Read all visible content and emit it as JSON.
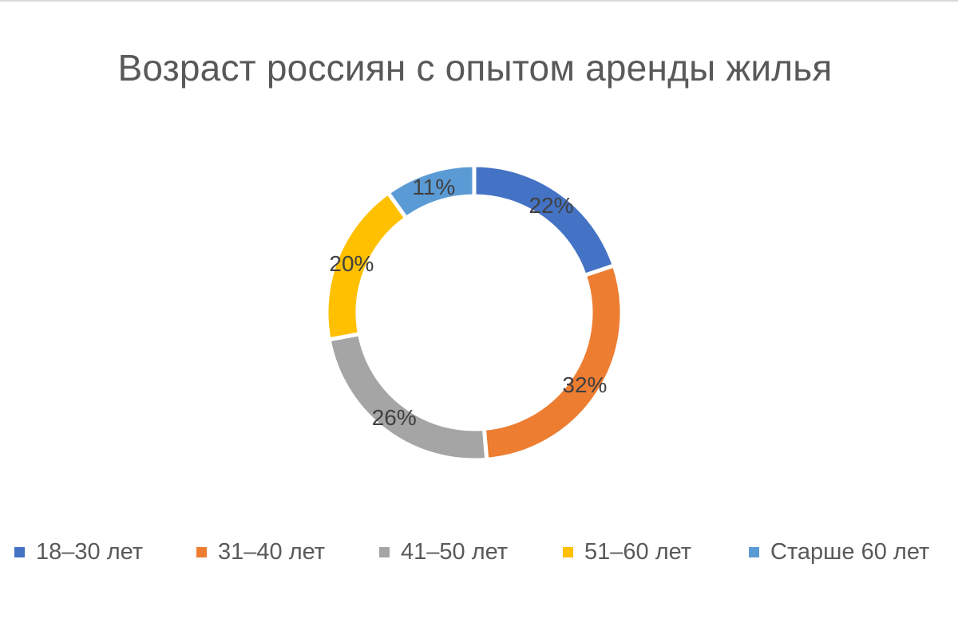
{
  "chart_data": {
    "type": "pie",
    "style": "donut",
    "title": "Возраст россиян с опытом аренды жилья",
    "categories": [
      "18–30 лет",
      "31–40 лет",
      "41–50 лет",
      "51–60 лет",
      "Старше 60 лет"
    ],
    "values": [
      22,
      32,
      26,
      20,
      11
    ],
    "data_labels": [
      "22%",
      "32%",
      "26%",
      "20%",
      "11%"
    ],
    "unit": "%",
    "colors": [
      "#4472C4",
      "#ED7D31",
      "#A5A5A5",
      "#FFC000",
      "#5B9BD5"
    ],
    "legend_position": "bottom",
    "grid": false
  }
}
